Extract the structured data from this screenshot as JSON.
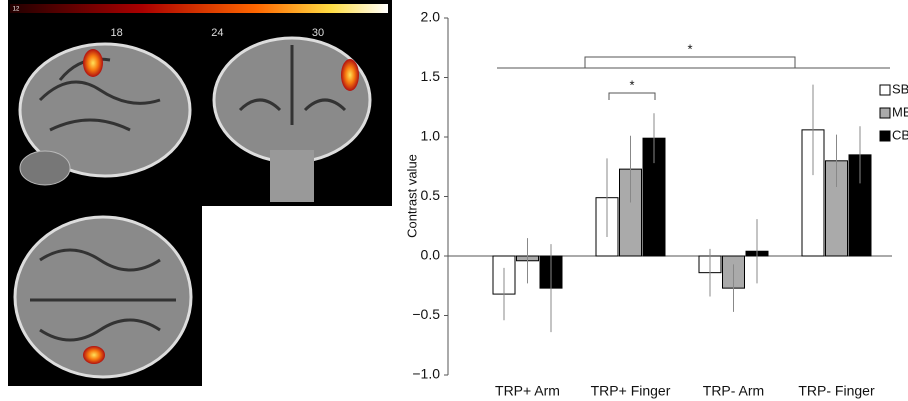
{
  "colorbar": {
    "ticks": [
      12,
      18,
      24,
      30
    ]
  },
  "chart_data": {
    "type": "bar",
    "y_label": "Contrast value",
    "categories": [
      "TRP+ Arm",
      "TRP+ Finger",
      "TRP- Arm",
      "TRP- Finger"
    ],
    "series": [
      {
        "name": "SB",
        "color": "#ffffff",
        "values": [
          -0.32,
          0.49,
          -0.14,
          1.06
        ],
        "errors": [
          0.22,
          0.33,
          0.2,
          0.38
        ]
      },
      {
        "name": "MB",
        "color": "#aaaaaa",
        "values": [
          -0.04,
          0.73,
          -0.27,
          0.8
        ],
        "errors": [
          0.19,
          0.28,
          0.2,
          0.22
        ]
      },
      {
        "name": "CB",
        "color": "#000000",
        "values": [
          -0.27,
          0.99,
          0.04,
          0.85
        ],
        "errors": [
          0.37,
          0.21,
          0.27,
          0.24
        ]
      }
    ],
    "ylim": [
      -1.0,
      2.0
    ],
    "yticks": [
      {
        "value": -1.0,
        "label": "−1.0"
      },
      {
        "value": -0.5,
        "label": "−0.5"
      },
      {
        "value": 0.0,
        "label": "0.0"
      },
      {
        "value": 0.5,
        "label": "0.5"
      },
      {
        "value": 1.0,
        "label": "1.0"
      },
      {
        "value": 1.5,
        "label": "1.5"
      },
      {
        "value": 2.0,
        "label": "2.0"
      }
    ],
    "annotations": [
      "*",
      "*"
    ]
  }
}
